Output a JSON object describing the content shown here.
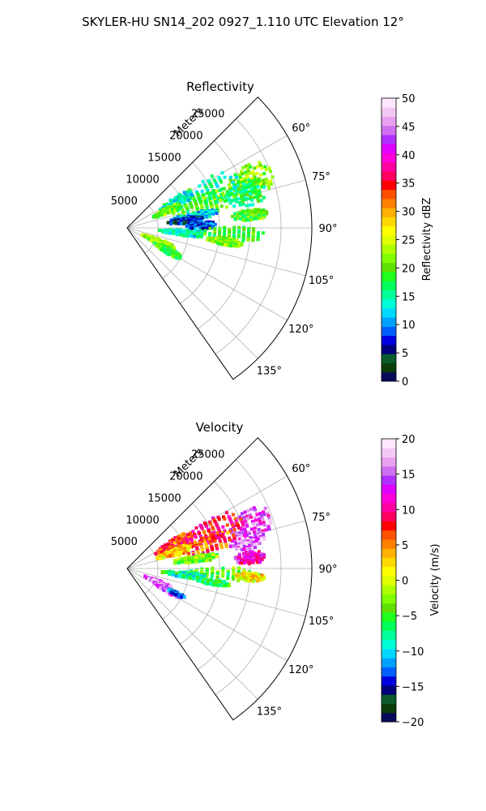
{
  "figure": {
    "title": "SKYLER-HU  SN14_202  0927_1.110 UTC Elevation 12°"
  },
  "chart_data": [
    {
      "type": "polar-sector",
      "key": "refl",
      "title": "Reflectivity",
      "radial_label": "Meters",
      "radial_ticks": [
        5000,
        10000,
        15000,
        20000,
        25000
      ],
      "radial_tick_labels": [
        "5000",
        "10000",
        "15000",
        "20000",
        "25000"
      ],
      "rlim": [
        0,
        30000
      ],
      "theta_range_deg": [
        45,
        145
      ],
      "theta_ticks": [
        60,
        75,
        90,
        105,
        120,
        135
      ],
      "theta_tick_labels": [
        "60°",
        "75°",
        "90°",
        "105°",
        "120°",
        "135°"
      ],
      "grid": true,
      "colorbar": {
        "label": "Reflectivity dBZ",
        "min": 0,
        "max": 50,
        "ticks": [
          0,
          5,
          10,
          15,
          20,
          25,
          30,
          35,
          40,
          45,
          50
        ],
        "tick_labels": [
          "0",
          "5",
          "10",
          "15",
          "20",
          "25",
          "30",
          "35",
          "40",
          "45",
          "50"
        ],
        "colors": [
          "#0a0a5a",
          "#0b3d0b",
          "#0b5b2b",
          "#00007a",
          "#0000e0",
          "#0060ff",
          "#00a0ff",
          "#00d8ff",
          "#00ffd8",
          "#00ff9a",
          "#00ff5a",
          "#20ff20",
          "#60e000",
          "#80ff00",
          "#b0ff00",
          "#e0ff00",
          "#ffff00",
          "#ffd800",
          "#ffb000",
          "#ff8000",
          "#ff5000",
          "#ff0000",
          "#ff0060",
          "#ff00a0",
          "#ff00d8",
          "#e000ff",
          "#b030ff",
          "#d070f0",
          "#e8a0f0",
          "#f4c8f4",
          "#ffe8ff"
        ]
      },
      "echoes": [
        {
          "az": 69,
          "r": 21500,
          "daz": 7,
          "dr": 3800,
          "value": 22
        },
        {
          "az": 74,
          "r": 20000,
          "daz": 6,
          "dr": 3500,
          "value": 17
        },
        {
          "az": 66,
          "r": 14000,
          "daz": 8,
          "dr": 6000,
          "value": 16
        },
        {
          "az": 73,
          "r": 13000,
          "daz": 7,
          "dr": 5500,
          "value": 20
        },
        {
          "az": 62,
          "r": 9000,
          "daz": 5,
          "dr": 3000,
          "value": 14
        },
        {
          "az": 67,
          "r": 7000,
          "daz": 4,
          "dr": 2500,
          "value": 21
        },
        {
          "az": 80,
          "r": 11000,
          "daz": 3,
          "dr": 4000,
          "value": 12
        },
        {
          "az": 83,
          "r": 9500,
          "daz": 3,
          "dr": 3000,
          "value": 6
        },
        {
          "az": 88,
          "r": 12000,
          "daz": 3,
          "dr": 2500,
          "value": 9
        },
        {
          "az": 84,
          "r": 20000,
          "daz": 2.5,
          "dr": 3000,
          "value": 19
        },
        {
          "az": 93,
          "r": 17000,
          "daz": 3.5,
          "dr": 5500,
          "value": 18
        },
        {
          "az": 95,
          "r": 9000,
          "daz": 3,
          "dr": 4000,
          "value": 15
        },
        {
          "az": 98,
          "r": 16000,
          "daz": 2,
          "dr": 3000,
          "value": 21
        },
        {
          "az": 114,
          "r": 5500,
          "daz": 5,
          "dr": 3000,
          "value": 23
        },
        {
          "az": 119,
          "r": 7500,
          "daz": 4,
          "dr": 2500,
          "value": 19
        }
      ]
    },
    {
      "type": "polar-sector",
      "key": "vel",
      "title": "Velocity",
      "radial_label": "Meters",
      "radial_ticks": [
        5000,
        10000,
        15000,
        20000,
        25000
      ],
      "radial_tick_labels": [
        "5000",
        "10000",
        "15000",
        "20000",
        "25000"
      ],
      "rlim": [
        0,
        30000
      ],
      "theta_range_deg": [
        45,
        145
      ],
      "theta_ticks": [
        60,
        75,
        90,
        105,
        120,
        135
      ],
      "theta_tick_labels": [
        "60°",
        "75°",
        "90°",
        "105°",
        "120°",
        "135°"
      ],
      "grid": true,
      "colorbar": {
        "label": "Velocity (m/s)",
        "min": -20,
        "max": 20,
        "ticks": [
          -20,
          -15,
          -10,
          -5,
          0,
          5,
          10,
          15,
          20
        ],
        "tick_labels": [
          "−20",
          "−15",
          "−10",
          "−5",
          "0",
          "5",
          "10",
          "15",
          "20"
        ],
        "colors": [
          "#0a0a5a",
          "#0b3d0b",
          "#0b5b2b",
          "#00007a",
          "#0000e0",
          "#0060ff",
          "#00a0ff",
          "#00d8ff",
          "#00ffd8",
          "#00ff9a",
          "#00ff5a",
          "#20ff20",
          "#60e000",
          "#80ff00",
          "#b0ff00",
          "#e0ff00",
          "#ffff00",
          "#ffd800",
          "#ffb000",
          "#ff8000",
          "#ff5000",
          "#ff0000",
          "#ff0060",
          "#ff00a0",
          "#ff00d8",
          "#e000ff",
          "#b030ff",
          "#d070f0",
          "#e8a0f0",
          "#f4c8f4",
          "#ffe8ff"
        ]
      },
      "echoes": [
        {
          "az": 70,
          "r": 21500,
          "daz": 6,
          "dr": 3800,
          "value": 14
        },
        {
          "az": 77,
          "r": 20000,
          "daz": 4,
          "dr": 3000,
          "value": 16
        },
        {
          "az": 66,
          "r": 15000,
          "daz": 7,
          "dr": 5500,
          "value": 9
        },
        {
          "az": 73,
          "r": 13000,
          "daz": 6,
          "dr": 5500,
          "value": 6
        },
        {
          "az": 62,
          "r": 8500,
          "daz": 5,
          "dr": 3500,
          "value": 7
        },
        {
          "az": 71,
          "r": 8000,
          "daz": 4,
          "dr": 3000,
          "value": 3
        },
        {
          "az": 82,
          "r": 11000,
          "daz": 3,
          "dr": 4000,
          "value": -3
        },
        {
          "az": 85,
          "r": 20000,
          "daz": 3,
          "dr": 2500,
          "value": 12
        },
        {
          "az": 93,
          "r": 16000,
          "daz": 3.5,
          "dr": 6000,
          "value": -4
        },
        {
          "az": 94,
          "r": 20000,
          "daz": 2,
          "dr": 2500,
          "value": 2
        },
        {
          "az": 96,
          "r": 9500,
          "daz": 3,
          "dr": 4000,
          "value": -8
        },
        {
          "az": 99,
          "r": 14000,
          "daz": 2,
          "dr": 3000,
          "value": -6
        },
        {
          "az": 114,
          "r": 5500,
          "daz": 4,
          "dr": 2500,
          "value": 16
        },
        {
          "az": 118,
          "r": 7500,
          "daz": 3,
          "dr": 2500,
          "value": 15
        },
        {
          "az": 117,
          "r": 9000,
          "daz": 1.5,
          "dr": 1500,
          "value": -13
        }
      ]
    }
  ]
}
